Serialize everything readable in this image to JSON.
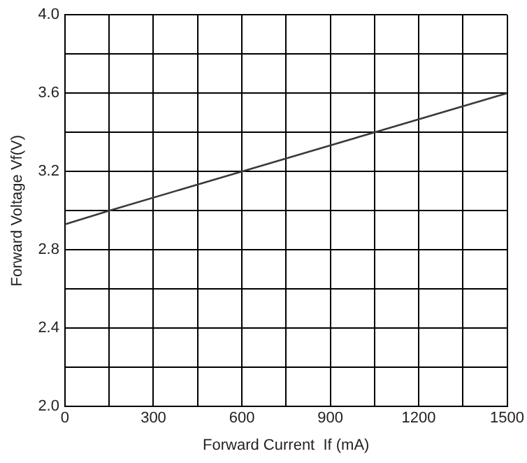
{
  "chart_data": {
    "type": "line",
    "xlabel": "Forward Current  If (mA)",
    "ylabel": "Forward Voltage Vf(V)",
    "x": [
      0,
      150,
      600,
      1050,
      1500
    ],
    "series": [
      {
        "color": "#3a3a3a",
        "values": [
          2.93,
          3.0,
          3.2,
          3.4,
          3.6
        ]
      }
    ],
    "xlim": [
      0,
      1500
    ],
    "ylim": [
      2.0,
      4.0
    ],
    "xticks": [
      0,
      {
        "value": 150,
        "label": null
      },
      300,
      {
        "value": 450,
        "label": null
      },
      600,
      {
        "value": 750,
        "label": null
      },
      900,
      {
        "value": 1050,
        "label": null
      },
      1200,
      {
        "value": 1350,
        "label": null
      },
      1500
    ],
    "yticks": [
      {
        "value": 2.0,
        "label": "2.0"
      },
      {
        "value": 2.2,
        "label": null
      },
      {
        "value": 2.4,
        "label": "2.4"
      },
      {
        "value": 2.6,
        "label": null
      },
      {
        "value": 2.8,
        "label": "2.8"
      },
      {
        "value": 3.0,
        "label": null
      },
      {
        "value": 3.2,
        "label": "3.2"
      },
      {
        "value": 3.4,
        "label": null
      },
      {
        "value": 3.6,
        "label": "3.6"
      },
      {
        "value": 3.8,
        "label": null
      },
      {
        "value": 4.0,
        "label": "4.0"
      }
    ],
    "grid": true,
    "marker": "none",
    "line_style": "solid",
    "legend": false
  }
}
